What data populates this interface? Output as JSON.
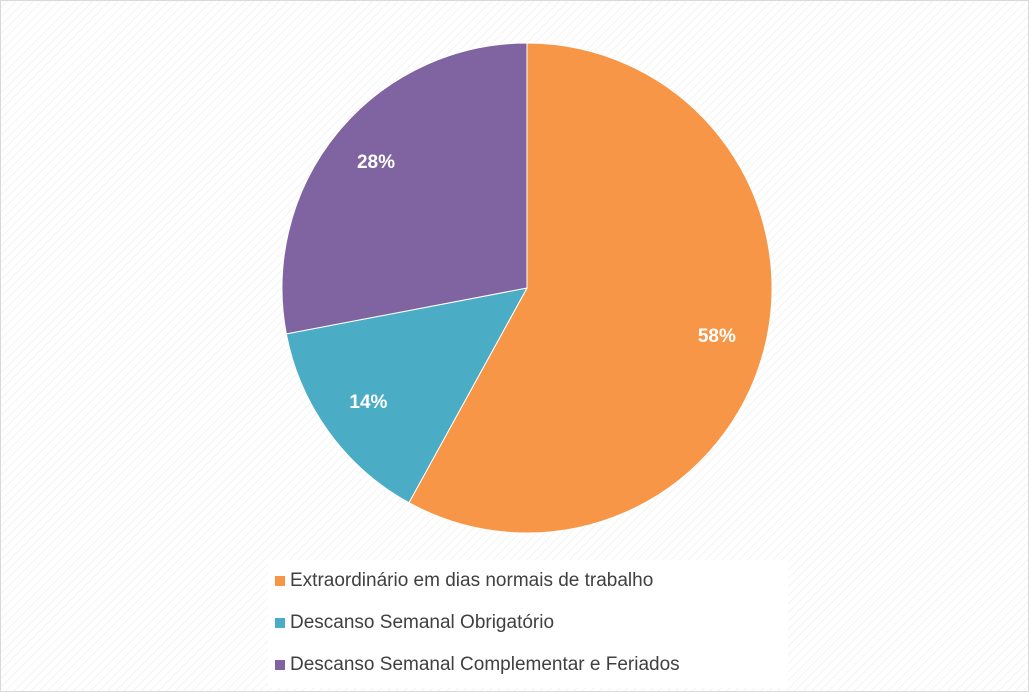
{
  "chart_data": {
    "type": "pie",
    "categories": [
      "Extraordinário em dias normais de trabalho",
      "Descanso Semanal Obrigatório",
      "Descanso Semanal Complementar e Feriados"
    ],
    "values": [
      58,
      14,
      28
    ],
    "value_labels": [
      "58%",
      "14%",
      "28%"
    ],
    "colors": [
      "#f79646",
      "#4bacc6",
      "#8064a2"
    ],
    "legend": "bottom"
  }
}
